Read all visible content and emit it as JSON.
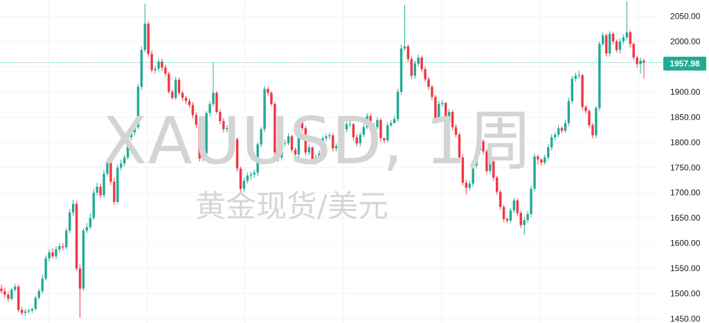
{
  "watermark": {
    "symbol": "XAUUSD, 1周",
    "name": "黄金现货/美元"
  },
  "current_price_label": "1957.98",
  "colors": {
    "up": "#22ab94",
    "down": "#f23645",
    "grid": "#f0f3fa",
    "axis_text": "#131722",
    "price_line": "#22ab94"
  },
  "chart_data": {
    "type": "candlestick",
    "title": "",
    "xlabel": "",
    "ylabel": "",
    "ylim": [
      1442,
      2082
    ],
    "y_ticks": [
      1450,
      1500,
      1550,
      1600,
      1650,
      1700,
      1750,
      1800,
      1850,
      1900,
      1950,
      2000,
      2050
    ],
    "y_tick_labels": [
      "1450.00",
      "1500.00",
      "1550.00",
      "1600.00",
      "1650.00",
      "1700.00",
      "1750.00",
      "1800.00",
      "1850.00",
      "1900.00",
      "1950.00",
      "2000.00",
      "2050.00"
    ],
    "last_price": 1957.98,
    "grid": true,
    "close": [
      1505,
      1498,
      1490,
      1508,
      1514,
      1468,
      1462,
      1465,
      1467,
      1470,
      1492,
      1505,
      1530,
      1570,
      1582,
      1574,
      1588,
      1594,
      1592,
      1625,
      1661,
      1678,
      1550,
      1510,
      1625,
      1632,
      1650,
      1700,
      1712,
      1695,
      1738,
      1762,
      1722,
      1682,
      1750,
      1758,
      1770,
      1810,
      1820,
      1830,
      1910,
      1983,
      2035,
      1975,
      1943,
      1946,
      1960,
      1948,
      1936,
      1900,
      1888,
      1924,
      1898,
      1888,
      1882,
      1874,
      1854,
      1835,
      1768,
      1778,
      1858,
      1876,
      1898,
      1860,
      1842,
      1826,
      1828,
      1810,
      1806,
      1748,
      1708,
      1724,
      1734,
      1736,
      1740,
      1796,
      1826,
      1906,
      1898,
      1876,
      1780,
      1770,
      1798,
      1798,
      1812,
      1785,
      1776,
      1840,
      1828,
      1780,
      1790,
      1762,
      1770,
      1778,
      1808,
      1812,
      1814,
      1788,
      1793,
      1810,
      1826,
      1836,
      1836,
      1810,
      1798,
      1815,
      1830,
      1852,
      1832,
      1830,
      1844,
      1808,
      1804,
      1834,
      1838,
      1846,
      1900,
      1986,
      1990,
      1965,
      1932,
      1956,
      1968,
      1945,
      1925,
      1910,
      1890,
      1848,
      1876,
      1878,
      1840,
      1860,
      1830,
      1815,
      1770,
      1720,
      1710,
      1718,
      1754,
      1784,
      1802,
      1782,
      1743,
      1762,
      1730,
      1702,
      1672,
      1648,
      1645,
      1665,
      1685,
      1660,
      1636,
      1646,
      1658,
      1708,
      1772,
      1766,
      1760,
      1770,
      1790,
      1810,
      1815,
      1828,
      1823,
      1838,
      1882,
      1926,
      1932,
      1933,
      1870,
      1862,
      1834,
      1814,
      1868,
      1995,
      2012,
      1976,
      2015,
      2000,
      1983,
      2000,
      2008,
      2018,
      1995,
      1968,
      1955,
      1962,
      1958
    ],
    "open": [
      1510,
      1505,
      1498,
      1490,
      1508,
      1514,
      1468,
      1462,
      1465,
      1467,
      1470,
      1492,
      1505,
      1530,
      1570,
      1582,
      1574,
      1588,
      1594,
      1592,
      1625,
      1661,
      1678,
      1550,
      1510,
      1625,
      1632,
      1650,
      1700,
      1712,
      1695,
      1738,
      1762,
      1722,
      1682,
      1750,
      1758,
      1770,
      1810,
      1820,
      1830,
      1910,
      1983,
      2035,
      1975,
      1943,
      1946,
      1960,
      1948,
      1936,
      1900,
      1888,
      1924,
      1898,
      1888,
      1882,
      1874,
      1854,
      1835,
      1768,
      1778,
      1858,
      1876,
      1898,
      1860,
      1842,
      1826,
      1828,
      1810,
      1806,
      1748,
      1708,
      1724,
      1734,
      1736,
      1740,
      1796,
      1826,
      1906,
      1898,
      1876,
      1780,
      1770,
      1798,
      1798,
      1812,
      1785,
      1776,
      1840,
      1828,
      1780,
      1790,
      1762,
      1770,
      1778,
      1808,
      1812,
      1814,
      1788,
      1793,
      1810,
      1826,
      1836,
      1836,
      1810,
      1798,
      1815,
      1830,
      1852,
      1832,
      1830,
      1844,
      1808,
      1804,
      1834,
      1838,
      1846,
      1900,
      1986,
      1990,
      1965,
      1932,
      1956,
      1968,
      1945,
      1925,
      1910,
      1890,
      1848,
      1876,
      1878,
      1840,
      1860,
      1830,
      1815,
      1770,
      1720,
      1710,
      1718,
      1754,
      1784,
      1802,
      1782,
      1743,
      1762,
      1730,
      1702,
      1672,
      1648,
      1645,
      1665,
      1685,
      1660,
      1636,
      1646,
      1658,
      1708,
      1772,
      1766,
      1760,
      1770,
      1790,
      1810,
      1815,
      1828,
      1823,
      1838,
      1882,
      1926,
      1932,
      1933,
      1870,
      1862,
      1834,
      1814,
      1868,
      1995,
      2012,
      1976,
      2015,
      2000,
      1983,
      2000,
      2008,
      2018,
      1995,
      1968,
      1955,
      1962
    ],
    "high": [
      1518,
      1512,
      1504,
      1512,
      1520,
      1518,
      1474,
      1470,
      1470,
      1472,
      1496,
      1510,
      1538,
      1576,
      1588,
      1590,
      1594,
      1600,
      1600,
      1630,
      1668,
      1686,
      1684,
      1558,
      1630,
      1640,
      1660,
      1708,
      1720,
      1718,
      1746,
      1768,
      1766,
      1730,
      1756,
      1766,
      1776,
      1816,
      1826,
      1838,
      1916,
      1990,
      2075,
      2040,
      1982,
      1952,
      1966,
      1966,
      1954,
      1940,
      1905,
      1930,
      1928,
      1902,
      1892,
      1888,
      1880,
      1860,
      1840,
      1782,
      1862,
      1882,
      1958,
      1902,
      1866,
      1848,
      1834,
      1832,
      1816,
      1810,
      1752,
      1730,
      1740,
      1742,
      1746,
      1800,
      1830,
      1912,
      1910,
      1902,
      1880,
      1784,
      1804,
      1806,
      1818,
      1815,
      1790,
      1846,
      1842,
      1832,
      1796,
      1792,
      1776,
      1784,
      1812,
      1818,
      1820,
      1818,
      1798,
      1816,
      1832,
      1842,
      1842,
      1838,
      1816,
      1820,
      1836,
      1858,
      1856,
      1838,
      1850,
      1848,
      1810,
      1840,
      1844,
      1852,
      1906,
      1994,
      2072,
      1994,
      1970,
      1962,
      1974,
      1972,
      1950,
      1930,
      1914,
      1894,
      1882,
      1884,
      1880,
      1866,
      1864,
      1836,
      1820,
      1776,
      1726,
      1724,
      1760,
      1790,
      1808,
      1806,
      1786,
      1768,
      1766,
      1734,
      1706,
      1676,
      1652,
      1670,
      1690,
      1688,
      1664,
      1652,
      1664,
      1714,
      1778,
      1776,
      1768,
      1776,
      1796,
      1816,
      1820,
      1834,
      1832,
      1844,
      1888,
      1932,
      1938,
      1942,
      1936,
      1874,
      1866,
      1838,
      1872,
      2000,
      2018,
      2016,
      2020,
      2018,
      2003,
      2006,
      2014,
      2080,
      2022,
      1998,
      1972,
      1968,
      1966
    ],
    "low": [
      1500,
      1492,
      1484,
      1486,
      1504,
      1464,
      1458,
      1456,
      1460,
      1462,
      1466,
      1488,
      1500,
      1526,
      1564,
      1570,
      1568,
      1582,
      1586,
      1588,
      1620,
      1654,
      1546,
      1452,
      1506,
      1620,
      1628,
      1646,
      1694,
      1690,
      1690,
      1732,
      1716,
      1676,
      1678,
      1744,
      1752,
      1766,
      1804,
      1814,
      1826,
      1904,
      1978,
      1970,
      1938,
      1936,
      1940,
      1942,
      1930,
      1896,
      1884,
      1884,
      1894,
      1882,
      1876,
      1868,
      1848,
      1828,
      1762,
      1762,
      1772,
      1852,
      1870,
      1856,
      1836,
      1820,
      1820,
      1802,
      1800,
      1742,
      1700,
      1702,
      1718,
      1726,
      1730,
      1734,
      1790,
      1820,
      1892,
      1872,
      1772,
      1762,
      1764,
      1792,
      1794,
      1780,
      1770,
      1770,
      1822,
      1774,
      1774,
      1756,
      1756,
      1764,
      1774,
      1802,
      1806,
      1782,
      1782,
      1788,
      1804,
      1820,
      1830,
      1804,
      1792,
      1792,
      1810,
      1826,
      1826,
      1824,
      1826,
      1802,
      1798,
      1800,
      1830,
      1840,
      1840,
      1894,
      1982,
      1960,
      1926,
      1926,
      1950,
      1940,
      1920,
      1904,
      1884,
      1842,
      1842,
      1870,
      1834,
      1834,
      1824,
      1810,
      1764,
      1714,
      1696,
      1704,
      1712,
      1748,
      1778,
      1776,
      1738,
      1738,
      1724,
      1696,
      1666,
      1642,
      1640,
      1640,
      1660,
      1654,
      1630,
      1616,
      1640,
      1652,
      1702,
      1756,
      1754,
      1756,
      1764,
      1784,
      1804,
      1810,
      1818,
      1818,
      1832,
      1876,
      1920,
      1926,
      1864,
      1856,
      1828,
      1808,
      1808,
      1862,
      1990,
      1970,
      1970,
      1994,
      1978,
      1976,
      1994,
      2002,
      1988,
      1962,
      1948,
      1936,
      1926
    ]
  }
}
